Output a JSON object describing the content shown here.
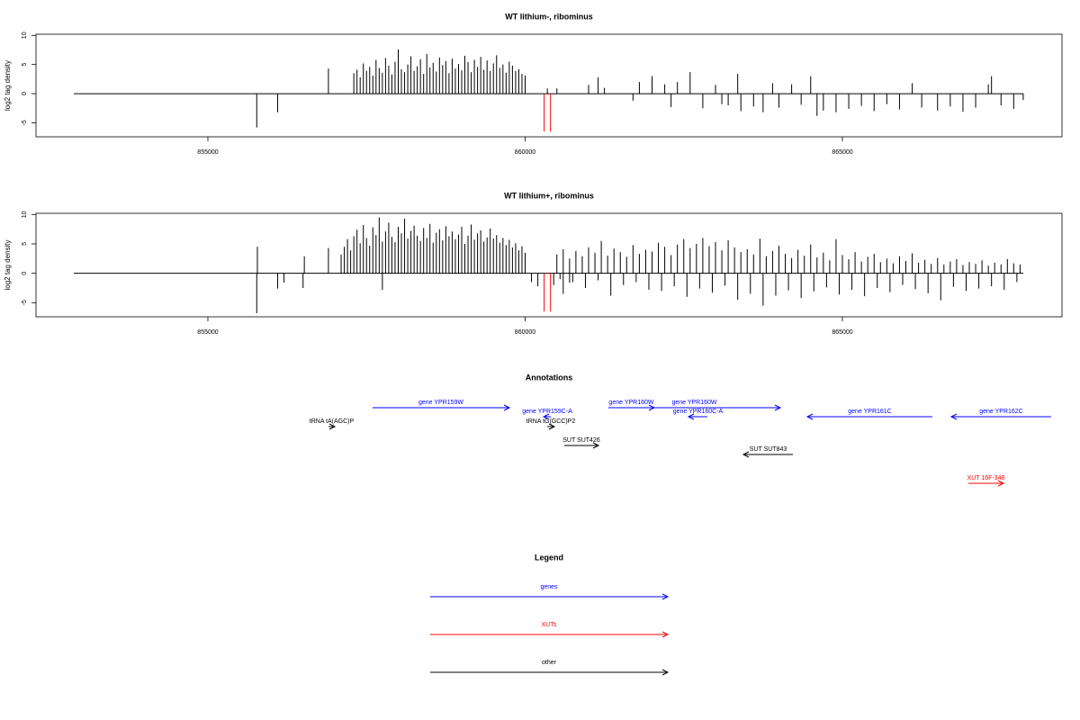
{
  "chart_data": [
    {
      "type": "bar",
      "title": "WT lithium-, ribominus",
      "y_label": "log2 tag density",
      "xlim": [
        852291,
        868461
      ],
      "ylim": [
        -7.4,
        10.2
      ],
      "xticks": [
        855000,
        860000,
        865000
      ],
      "yticks": [
        -5,
        0,
        5,
        10
      ],
      "series": [
        {
          "color": "#000000",
          "x": [
            855770,
            856100,
            856900
          ],
          "values": [
            -5.8,
            -3.2,
            4.3
          ]
        },
        {
          "color": "#000000",
          "x": [
            857300,
            857350,
            857400,
            857450,
            857500,
            857550,
            857600,
            857650,
            857700,
            857750,
            857800,
            857850,
            857900,
            857950,
            858000,
            858050,
            858100,
            858150,
            858200,
            858250,
            858300,
            858350,
            858400,
            858450,
            858500,
            858550,
            858600,
            858650,
            858700,
            858750,
            858800,
            858850,
            858900,
            858950,
            859000,
            859050,
            859100,
            859150,
            859200,
            859250,
            859300,
            859350,
            859400,
            859450,
            859500,
            859550,
            859600,
            859650,
            859700,
            859750,
            859800,
            859850,
            859900,
            859950,
            860000
          ],
          "values": [
            3.5,
            4.1,
            2.8,
            5.2,
            3.9,
            4.6,
            3.1,
            5.8,
            4.4,
            3.6,
            6.1,
            4.8,
            3.3,
            5.5,
            7.6,
            4.2,
            3.7,
            5.0,
            6.4,
            3.9,
            4.7,
            5.9,
            3.4,
            6.8,
            4.5,
            5.3,
            3.8,
            6.2,
            4.9,
            5.6,
            3.5,
            6.0,
            4.3,
            5.1,
            4.0,
            6.5,
            5.4,
            3.7,
            5.8,
            4.6,
            6.3,
            4.1,
            5.7,
            3.9,
            5.2,
            6.6,
            4.4,
            5.0,
            3.6,
            5.5,
            4.8,
            3.9,
            4.2,
            3.4,
            3.1
          ]
        },
        {
          "color": "#000000",
          "x": [
            860350,
            860500
          ],
          "values": [
            0.9,
            0.9
          ]
        },
        {
          "color": "#000000",
          "x": [
            861000,
            861150,
            861250,
            861700,
            861800,
            862000,
            862200,
            862300,
            862400,
            862600,
            862800,
            863000,
            863100,
            863200,
            863350,
            863400,
            863600,
            863750,
            863900,
            864000,
            864200,
            864350,
            864500,
            864600,
            864700,
            864900,
            865100,
            865300,
            865500,
            865700,
            865900,
            866100,
            866250,
            866500,
            866700,
            866900,
            867100,
            867300,
            867350,
            867500,
            867700,
            867850
          ],
          "values": [
            1.5,
            2.8,
            1.0,
            -1.2,
            2.0,
            3.0,
            1.6,
            -2.3,
            2.0,
            3.7,
            -2.5,
            1.5,
            -1.8,
            -2.0,
            3.4,
            -3.0,
            -2.2,
            -3.2,
            1.8,
            -2.4,
            1.6,
            -1.9,
            3.0,
            -3.8,
            -2.9,
            -3.2,
            -2.6,
            -2.1,
            -3.0,
            -1.8,
            -2.7,
            1.8,
            -2.4,
            -2.9,
            -2.2,
            -3.1,
            -2.4,
            1.6,
            3.0,
            -2.0,
            -2.6,
            -1.1
          ]
        },
        {
          "color": "#ff0000",
          "x": [
            860300,
            860400
          ],
          "values": [
            -6.5,
            -6.5
          ]
        }
      ]
    },
    {
      "type": "bar",
      "title": "WT lithium+, ribominus",
      "y_label": "log2 tag density",
      "xlim": [
        852291,
        868461
      ],
      "ylim": [
        -7.4,
        10.2
      ],
      "xticks": [
        855000,
        860000,
        865000
      ],
      "yticks": [
        -5,
        0,
        5,
        10
      ],
      "series": [
        {
          "color": "#000000",
          "x": [
            855770,
            855780,
            856100,
            856200,
            856500,
            856520,
            856900,
            857750
          ],
          "values": [
            -6.8,
            4.5,
            -2.6,
            -1.6,
            -2.5,
            2.9,
            4.3,
            -2.8
          ]
        },
        {
          "color": "#000000",
          "x": [
            857100,
            857150,
            857200,
            857250,
            857300,
            857350,
            857400,
            857450,
            857500,
            857550,
            857600,
            857650,
            857700,
            857750,
            857800,
            857850,
            857900,
            857950,
            858000,
            858050,
            858100,
            858150,
            858200,
            858250,
            858300,
            858350,
            858400,
            858450,
            858500,
            858550,
            858600,
            858650,
            858700,
            858750,
            858800,
            858850,
            858900,
            858950,
            859000,
            859050,
            859100,
            859150,
            859200,
            859250,
            859300,
            859350,
            859400,
            859450,
            859500,
            859550,
            859600,
            859650,
            859700,
            859750,
            859800,
            859850,
            859900,
            859950,
            860000
          ],
          "values": [
            3.2,
            4.5,
            5.8,
            3.9,
            6.3,
            7.4,
            5.1,
            8.2,
            6.0,
            4.7,
            7.8,
            6.5,
            9.5,
            5.4,
            7.1,
            8.6,
            6.2,
            5.3,
            7.9,
            6.8,
            9.3,
            5.9,
            7.2,
            8.1,
            6.4,
            5.5,
            7.7,
            6.0,
            8.4,
            5.2,
            6.9,
            7.5,
            5.6,
            8.0,
            6.3,
            7.1,
            5.8,
            6.6,
            7.9,
            5.0,
            6.4,
            8.3,
            5.7,
            6.8,
            7.3,
            5.4,
            6.1,
            7.6,
            5.9,
            6.5,
            5.2,
            6.0,
            4.8,
            5.7,
            4.4,
            5.1,
            3.9,
            4.6,
            3.5
          ]
        },
        {
          "color": "#000000",
          "x": [
            860100,
            860200,
            860450,
            860600,
            860700
          ],
          "values": [
            -1.5,
            -2.2,
            -2.0,
            -3.5,
            -1.6
          ]
        },
        {
          "color": "#000000",
          "x": [
            860500,
            860600,
            860700,
            860800,
            860900,
            861000,
            861100,
            861200,
            861300,
            861400,
            861500,
            861600,
            861700,
            861800,
            861900,
            862000,
            862100,
            862200,
            862300,
            862400,
            862500,
            862600,
            862700,
            862800,
            862900,
            863000,
            863100,
            863200,
            863300,
            863400,
            863500,
            863600,
            863700,
            863800,
            863900,
            864000,
            864100,
            864200,
            864300,
            864400,
            864500,
            864600,
            864700,
            864800,
            864900,
            865000,
            865100,
            865200,
            865300,
            865400,
            865500,
            865600,
            865700,
            865800,
            865900,
            866000,
            866100,
            866200,
            866300,
            866400,
            866500,
            866600,
            866700,
            866800,
            866900,
            867000,
            867100,
            867200,
            867300,
            867400,
            867500,
            867600,
            867700,
            867800
          ],
          "values": [
            3.2,
            4.1,
            2.5,
            3.8,
            2.9,
            4.4,
            3.5,
            5.5,
            3.0,
            4.2,
            3.6,
            2.8,
            4.8,
            3.3,
            4.0,
            3.7,
            5.2,
            4.5,
            3.1,
            4.9,
            5.8,
            4.3,
            5.0,
            6.0,
            4.6,
            5.3,
            3.9,
            5.6,
            4.4,
            3.6,
            4.1,
            3.2,
            5.9,
            2.9,
            3.8,
            4.7,
            3.3,
            2.6,
            4.0,
            3.0,
            4.9,
            2.7,
            3.5,
            2.2,
            5.8,
            3.1,
            2.4,
            3.6,
            2.0,
            2.8,
            3.3,
            1.9,
            2.5,
            1.7,
            2.9,
            2.1,
            3.4,
            1.8,
            2.3,
            1.6,
            2.6,
            1.5,
            2.0,
            2.4,
            1.4,
            1.9,
            1.6,
            2.2,
            1.3,
            1.8,
            1.5,
            2.4,
            1.7,
            1.5
          ]
        },
        {
          "color": "#000000",
          "x": [
            860550,
            860750,
            860950,
            861150,
            861350,
            861550,
            861750,
            861950,
            862150,
            862350,
            862550,
            862750,
            862950,
            863150,
            863350,
            863550,
            863750,
            863950,
            864150,
            864350,
            864550,
            864750,
            864950,
            865150,
            865350,
            865550,
            865750,
            865950,
            866150,
            866350,
            866550,
            866750,
            866950,
            867150,
            867350,
            867550,
            867750
          ],
          "values": [
            -1.0,
            -1.5,
            -2.5,
            -1.2,
            -3.8,
            -2.0,
            -1.5,
            -2.8,
            -3.0,
            -2.2,
            -4.0,
            -2.6,
            -3.3,
            -2.1,
            -4.5,
            -3.5,
            -5.5,
            -3.8,
            -2.9,
            -4.2,
            -3.1,
            -2.4,
            -3.6,
            -2.8,
            -3.9,
            -2.5,
            -3.2,
            -2.0,
            -2.7,
            -3.4,
            -4.6,
            -2.3,
            -3.0,
            -2.6,
            -2.2,
            -2.8,
            -1.5
          ]
        },
        {
          "color": "#ff0000",
          "x": [
            860300,
            860400
          ],
          "values": [
            -6.5,
            -6.5
          ]
        }
      ]
    },
    {
      "type": "annotation",
      "title": "Annotations",
      "xlim": [
        852291,
        868461
      ],
      "features": [
        {
          "label": "gene YPR159W",
          "start": 857596,
          "end": 859752,
          "strand": "+",
          "color": "#0000ff"
        },
        {
          "label": "gene YPR159C-A",
          "start": 860291,
          "end": 860404,
          "strand": "-",
          "color": "#0000ff"
        },
        {
          "label": "tRNA tA(AGC)P",
          "start": 856901,
          "end": 857000,
          "strand": "+",
          "color": "#000000"
        },
        {
          "label": "tRNA tG(GCC)P2",
          "start": 860348,
          "end": 860461,
          "strand": "+",
          "color": "#000000"
        },
        {
          "label": "gene YPR160W",
          "start": 861312,
          "end": 862035,
          "strand": "+",
          "color": "#0000ff"
        },
        {
          "label": "gene YPR160W",
          "start": 861312,
          "end": 864021,
          "strand": "+",
          "color": "#0000ff"
        },
        {
          "label": "gene YPR160C-A",
          "start": 862574,
          "end": 862872,
          "strand": "-",
          "color": "#0000ff"
        },
        {
          "label": "gene YPR161C",
          "start": 864447,
          "end": 866418,
          "strand": "-",
          "color": "#0000ff"
        },
        {
          "label": "gene YPR162C",
          "start": 866716,
          "end": 868291,
          "strand": "-",
          "color": "#0000ff"
        },
        {
          "label": "SUT SUT426",
          "start": 860617,
          "end": 861156,
          "strand": "+",
          "color": "#000000"
        },
        {
          "label": "SUT SUT843",
          "start": 863440,
          "end": 864220,
          "strand": "-",
          "color": "#000000"
        },
        {
          "label": "XUT 16F-348",
          "start": 866986,
          "end": 867539,
          "strand": "+",
          "color": "#ff0000"
        }
      ]
    },
    {
      "type": "legend",
      "title": "Legend",
      "items": [
        {
          "name": "genes",
          "color": "#0000ff"
        },
        {
          "name": "XUTs",
          "color": "#ff0000"
        },
        {
          "name": "other",
          "color": "#000000"
        }
      ]
    }
  ]
}
